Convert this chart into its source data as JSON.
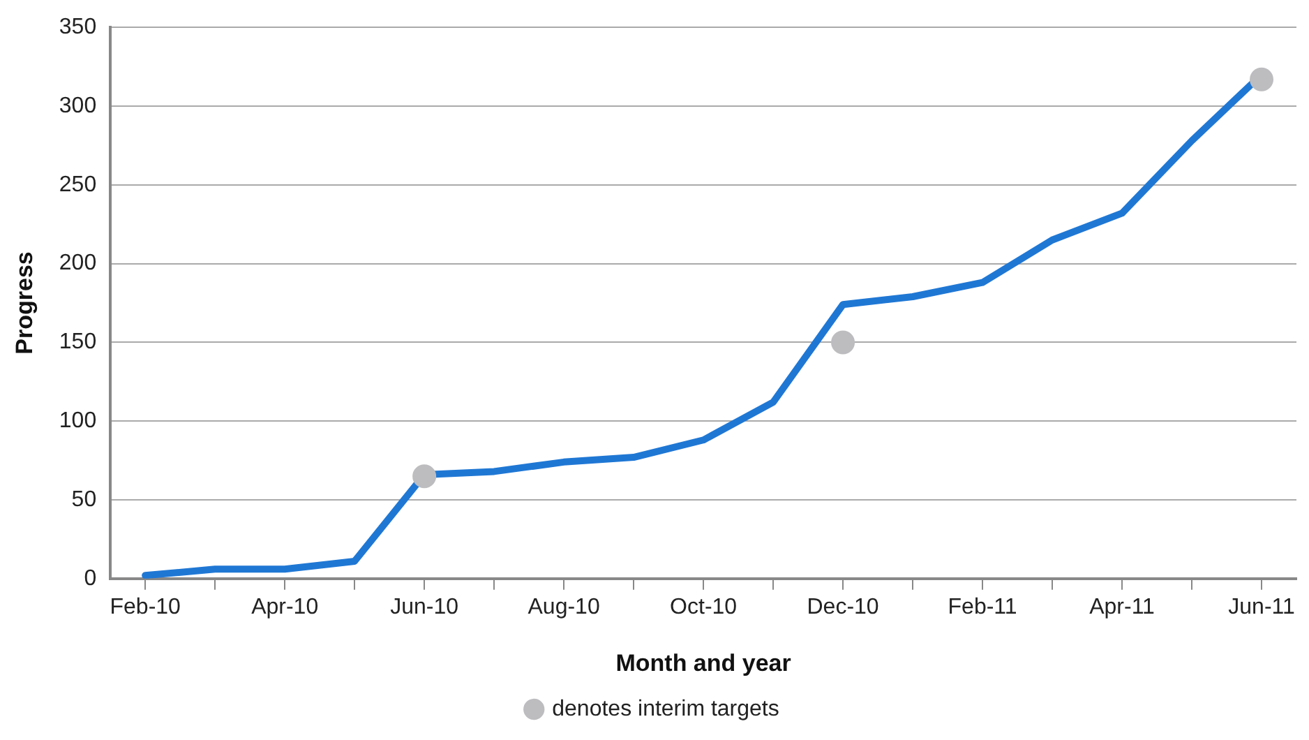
{
  "chart_data": {
    "type": "line",
    "xlabel": "Month and year",
    "ylabel": "Progress",
    "categories": [
      "Feb-10",
      null,
      "Apr-10",
      null,
      "Jun-10",
      null,
      "Aug-10",
      null,
      "Oct-10",
      null,
      "Dec-10",
      null,
      "Feb-11",
      null,
      "Apr-11",
      null,
      "Jun-11"
    ],
    "series": [
      {
        "color": "#1f77d4",
        "values": [
          2,
          6,
          6,
          11,
          66,
          68,
          74,
          77,
          88,
          112,
          174,
          179,
          188,
          215,
          232,
          278,
          320
        ],
        "marker": "none"
      },
      {
        "type": "scatter",
        "name": "denotes interim targets",
        "color": "#bdbdc0",
        "x": [
          "Jun-10",
          "Dec-10",
          "Jun-11"
        ],
        "values": [
          65,
          150,
          317
        ],
        "marker": "circle"
      }
    ],
    "ylim": [
      0,
      350
    ],
    "yticks": [
      0,
      50,
      100,
      150,
      200,
      250,
      300,
      350
    ],
    "grid": "y",
    "legend": "bottom"
  }
}
